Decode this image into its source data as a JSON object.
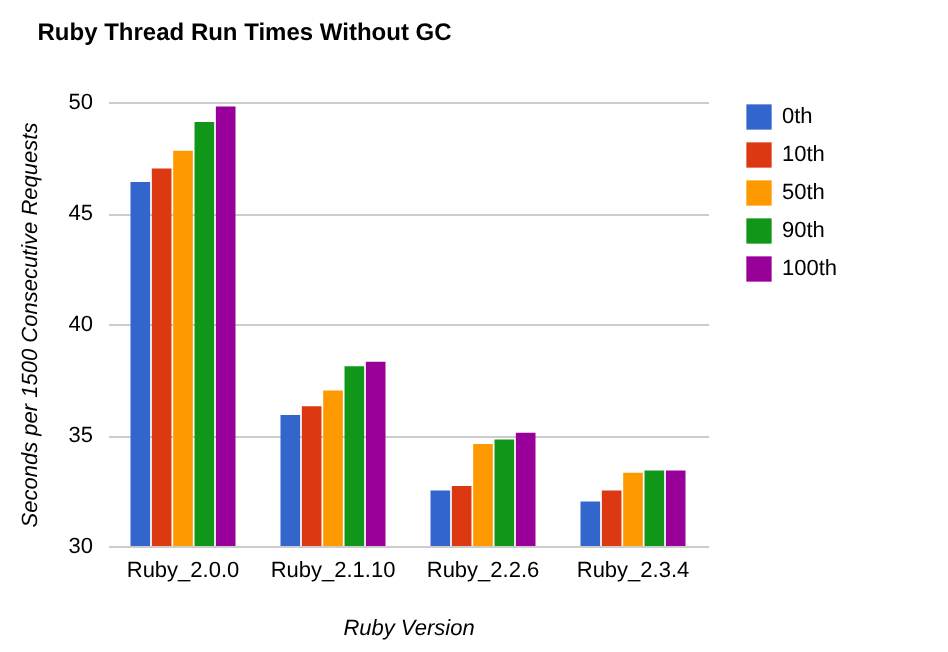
{
  "chart_data": {
    "type": "bar",
    "title": "Ruby Thread Run Times Without GC",
    "xlabel": "Ruby Version",
    "ylabel": "Seconds per 1500 Consecutive Requests",
    "categories": [
      "Ruby_2.0.0",
      "Ruby_2.1.10",
      "Ruby_2.2.6",
      "Ruby_2.3.4"
    ],
    "series": [
      {
        "name": "0th",
        "color": "#3366cc",
        "values": [
          46.4,
          35.9,
          32.5,
          32.0
        ]
      },
      {
        "name": "10th",
        "color": "#dc3912",
        "values": [
          47.0,
          36.3,
          32.7,
          32.5
        ]
      },
      {
        "name": "50th",
        "color": "#ff9900",
        "values": [
          47.8,
          37.0,
          34.6,
          33.3
        ]
      },
      {
        "name": "90th",
        "color": "#109618",
        "values": [
          49.1,
          38.1,
          34.8,
          33.4
        ]
      },
      {
        "name": "100th",
        "color": "#990099",
        "values": [
          49.8,
          38.3,
          35.1,
          33.4
        ]
      }
    ],
    "ylim": [
      30,
      50
    ],
    "yticks": [
      30,
      35,
      40,
      45,
      50
    ],
    "grid": "y",
    "legend": "top right"
  }
}
